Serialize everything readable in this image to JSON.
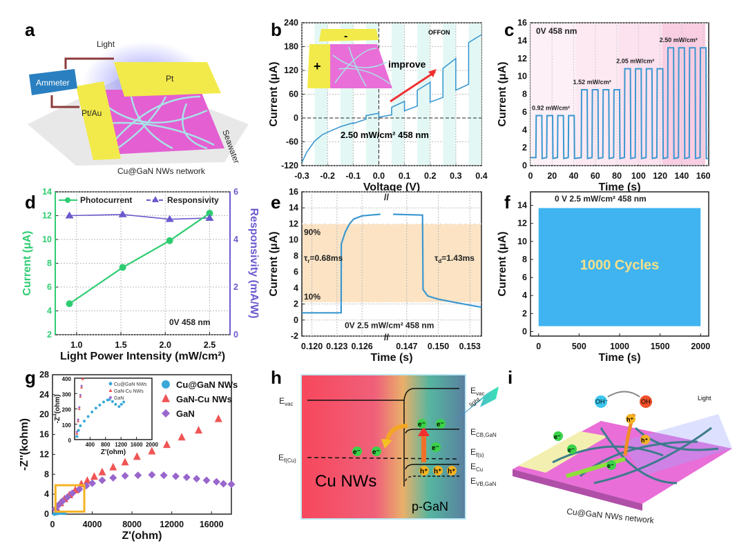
{
  "panel_letters": [
    "a",
    "b",
    "c",
    "d",
    "e",
    "f",
    "g",
    "h",
    "i"
  ],
  "panel_a": {
    "light": "Light",
    "pt": "Pt",
    "ammeter": "Ammeter",
    "ptau": "Pt/Au",
    "seawater": "Seawater",
    "network": "Cu@GaN NWs network"
  },
  "panel_b_inset": {
    "minus": "-",
    "plus": "+",
    "improve": "improve",
    "offon": "OFFON",
    "condition": "2.50 mW/cm²   458 nm"
  },
  "panel_h": {
    "evac_left": {
      "main": "E",
      "sub": "vac"
    },
    "ef_cu": {
      "main": "E",
      "sub": "f(Cu)"
    },
    "evac_right": {
      "main": "E",
      "sub": "vac"
    },
    "ecb": {
      "main": "E",
      "sub": "CB,GaN"
    },
    "efs": {
      "main": "E",
      "sub": "f(s)"
    },
    "ecu": {
      "main": "E",
      "sub": "Cu"
    },
    "evb": {
      "main": "E",
      "sub": "VB,GaN"
    },
    "cu_nws": "Cu NWs",
    "p_gan": "p-GaN",
    "light": "light",
    "electron": "e⁻",
    "hole": "h⁺"
  },
  "panel_i": {
    "oh_minus": "OH⁻",
    "oh_radical": "OH·",
    "light": "Light",
    "electron": "e⁻",
    "hole": "h⁺",
    "network": "Cu@GaN NWs network"
  },
  "colors": {
    "trace": "#3a97d0",
    "photocurrent": "#2ecc71",
    "responsivity": "#6a5acd",
    "cu_gan": "#3aa7d8",
    "gan_cu": "#f05454",
    "gan": "#9966cc",
    "zoom_box": "#f5b323",
    "on_band": "#e3f8f4",
    "fill_e": "#fbe3c4"
  },
  "chart_data": [
    {
      "id": "b",
      "type": "line",
      "xlabel": "Voltage (V)",
      "ylabel": "Current (μA)",
      "xlim": [
        -0.3,
        0.4
      ],
      "ylim": [
        -120,
        240
      ],
      "xticks": [
        "-0.3",
        "-0.2",
        "-0.1",
        "0.0",
        "0.1",
        "0.2",
        "0.3",
        "0.4"
      ],
      "yticks": [
        "-120",
        "-60",
        "0",
        "60",
        "120",
        "180",
        "240"
      ],
      "grid": true,
      "on_intervals": [
        [
          -0.25,
          -0.2
        ],
        [
          -0.15,
          -0.1
        ],
        [
          -0.05,
          0
        ],
        [
          0.05,
          0.1
        ],
        [
          0.15,
          0.2
        ],
        [
          0.25,
          0.3
        ],
        [
          0.35,
          0.4
        ]
      ],
      "points": [
        [
          -0.3,
          -112
        ],
        [
          -0.28,
          -85
        ],
        [
          -0.25,
          -58
        ],
        [
          -0.22,
          -42
        ],
        [
          -0.2,
          -36
        ],
        [
          -0.15,
          -22
        ],
        [
          -0.1,
          -12
        ],
        [
          -0.1,
          -14
        ],
        [
          -0.05,
          -3
        ],
        [
          -0.05,
          6
        ],
        [
          0,
          12
        ],
        [
          0,
          2
        ],
        [
          0.05,
          8
        ],
        [
          0.05,
          27
        ],
        [
          0.1,
          42
        ],
        [
          0.1,
          18
        ],
        [
          0.15,
          30
        ],
        [
          0.15,
          70
        ],
        [
          0.2,
          90
        ],
        [
          0.2,
          40
        ],
        [
          0.25,
          52
        ],
        [
          0.25,
          125
        ],
        [
          0.3,
          150
        ],
        [
          0.3,
          70
        ],
        [
          0.35,
          85
        ],
        [
          0.35,
          190
        ],
        [
          0.4,
          210
        ]
      ]
    },
    {
      "id": "c",
      "type": "line",
      "xlabel": "Time (s)",
      "ylabel": "Current (μA)",
      "xlim": [
        0,
        165
      ],
      "ylim": [
        0,
        16
      ],
      "xticks": [
        "0",
        "20",
        "40",
        "60",
        "80",
        "100",
        "120",
        "140",
        "160"
      ],
      "yticks": [
        "0",
        "2",
        "4",
        "6",
        "8",
        "10",
        "12",
        "14",
        "16"
      ],
      "grid": true,
      "condition": "0V   458 nm",
      "dark_current": 0.9,
      "period_s": 10,
      "on_duration_s": 5.5,
      "segments": [
        {
          "label": "0.92 mW/cm²",
          "start": 0,
          "end": 42,
          "on_current": 5.6,
          "shade": "#fdf0f6"
        },
        {
          "label": "1.52 mW/cm²",
          "start": 42,
          "end": 82,
          "on_current": 8.5,
          "shade": "#fde9f2"
        },
        {
          "label": "2.05 mW/cm²",
          "start": 82,
          "end": 122,
          "on_current": 10.85,
          "shade": "#fce1ee"
        },
        {
          "label": "2.50 mW/cm²",
          "start": 122,
          "end": 162,
          "on_current": 13.2,
          "shade": "#f9cde2"
        }
      ]
    },
    {
      "id": "d",
      "type": "line",
      "xlabel": "Light Power Intensity (mW/cm²)",
      "ylabel": "Current (μA)",
      "y2label": "Responsivity (mA/W)",
      "xlim": [
        0.76,
        2.73
      ],
      "ylim": [
        2,
        14
      ],
      "y2lim": [
        0,
        6
      ],
      "xticks": [
        "1.0",
        "1.5",
        "2.0",
        "2.5"
      ],
      "yticks": [
        "2",
        "4",
        "6",
        "8",
        "10",
        "12",
        "14"
      ],
      "y2ticks": [
        "0",
        "2",
        "4",
        "6"
      ],
      "grid": true,
      "legend": "top",
      "condition": "0V    458 nm",
      "series": [
        {
          "name": "Photocurrent",
          "axis": "left",
          "x": [
            0.92,
            1.52,
            2.05,
            2.5
          ],
          "values": [
            4.6,
            7.65,
            9.9,
            12.2
          ]
        },
        {
          "name": "Responsivity",
          "axis": "right",
          "x": [
            0.92,
            1.52,
            2.05,
            2.5
          ],
          "values": [
            5.0,
            5.05,
            4.85,
            4.9
          ]
        }
      ]
    },
    {
      "id": "e",
      "type": "line",
      "xlabel": "Time (s)",
      "ylabel": "Current (μA)",
      "ylim": [
        -2,
        16
      ],
      "broken_x": true,
      "xlim_segments": [
        [
          0.1188,
          0.1288
        ],
        [
          0.1455,
          0.1541
        ]
      ],
      "xticks": [
        [
          "0.120",
          "0.123",
          "0.126"
        ],
        [
          "0.147",
          "0.150",
          "0.153"
        ]
      ],
      "yticks": [
        "-2",
        "0",
        "2",
        "4",
        "6",
        "8",
        "10",
        "12",
        "14",
        "16"
      ],
      "grid": true,
      "band": [
        2.2,
        12
      ],
      "label_90": "90%",
      "label_10": "10%",
      "tau_r": {
        "sym": "τ",
        "sub": "r",
        "rest": "=0.68ms"
      },
      "tau_d": {
        "sym": "τ",
        "sub": "d",
        "rest": "=1.43ms"
      },
      "condition": "0V   2.5 mW/cm²   458 nm",
      "points": [
        [
          [
            0.1188,
            0.9
          ],
          [
            0.1235,
            0.9
          ],
          [
            0.12352,
            9.5
          ],
          [
            0.124,
            11
          ],
          [
            0.1245,
            12
          ],
          [
            0.125,
            12.6
          ],
          [
            0.126,
            13
          ],
          [
            0.127,
            13.1
          ],
          [
            0.1282,
            13.2
          ]
        ],
        [
          [
            0.1457,
            13.2
          ],
          [
            0.1485,
            13.1
          ],
          [
            0.14855,
            3.8
          ],
          [
            0.149,
            3.0
          ],
          [
            0.15,
            2.6
          ],
          [
            0.152,
            2.1
          ],
          [
            0.1541,
            1.6
          ]
        ]
      ]
    },
    {
      "id": "f",
      "type": "area",
      "xlabel": "Time (s)",
      "ylabel": "Current (μA)",
      "xlim": [
        -100,
        2100
      ],
      "ylim": [
        -0.5,
        15.5
      ],
      "xticks": [
        "0",
        "500",
        "1000",
        "1500",
        "2000"
      ],
      "yticks": [
        "0",
        "2",
        "4",
        "6",
        "8",
        "10",
        "12",
        "14"
      ],
      "grid": false,
      "condition": "0 V    2.5 mW/cm²    458 nm",
      "cycles_label": "1000 Cycles",
      "range": [
        0,
        2000
      ],
      "min_current": 0.6,
      "max_current": 13.7
    },
    {
      "id": "g",
      "type": "scatter",
      "xlabel": "Z'(ohm)",
      "ylabel": "-Z''(kohm)",
      "xlim": [
        0,
        18000
      ],
      "ylim": [
        0,
        28
      ],
      "xticks": [
        "0",
        "4000",
        "8000",
        "12000",
        "16000"
      ],
      "yticks": [
        "0",
        "4",
        "8",
        "12",
        "16",
        "20",
        "24",
        "28"
      ],
      "grid": false,
      "legend": "top-right",
      "series": [
        {
          "name": "Cu@GaN NWs",
          "marker": "circle",
          "points": [
            [
              200,
              0.05
            ],
            [
              400,
              0.15
            ],
            [
              600,
              0.22
            ],
            [
              800,
              0.26
            ],
            [
              1000,
              0.24
            ],
            [
              1200,
              0.23
            ]
          ]
        },
        {
          "name": "GaN-Cu NWs",
          "marker": "triangle",
          "points": [
            [
              400,
              1.2
            ],
            [
              800,
              2.2
            ],
            [
              1200,
              3.0
            ],
            [
              1700,
              3.8
            ],
            [
              2300,
              4.8
            ],
            [
              2900,
              6
            ],
            [
              3500,
              6.7
            ],
            [
              4200,
              7.5
            ],
            [
              5000,
              8.4
            ],
            [
              6100,
              9.4
            ],
            [
              7300,
              10.4
            ],
            [
              8500,
              11.5
            ],
            [
              10000,
              12.6
            ],
            [
              11500,
              13.9
            ],
            [
              13000,
              15.4
            ],
            [
              14700,
              16.8
            ],
            [
              16700,
              19.1
            ]
          ]
        },
        {
          "name": "GaN",
          "marker": "diamond",
          "points": [
            [
              300,
              1.0
            ],
            [
              600,
              1.8
            ],
            [
              1000,
              2.6
            ],
            [
              1500,
              3.4
            ],
            [
              2000,
              4.2
            ],
            [
              2700,
              5
            ],
            [
              3400,
              5.7
            ],
            [
              4000,
              6.2
            ],
            [
              5000,
              6.8
            ],
            [
              6100,
              7.3
            ],
            [
              7300,
              7.7
            ],
            [
              8600,
              7.8
            ],
            [
              10000,
              7.9
            ],
            [
              11200,
              7.8
            ],
            [
              12400,
              7.6
            ],
            [
              13500,
              7.4
            ],
            [
              14500,
              7.1
            ],
            [
              15500,
              6.8
            ],
            [
              16500,
              6.5
            ],
            [
              17200,
              6.1
            ],
            [
              18000,
              6.0
            ]
          ]
        }
      ],
      "zoom_box": [
        [
          300,
          3200
        ],
        [
          0.5,
          5.8
        ]
      ]
    },
    {
      "id": "g_inset",
      "type": "scatter",
      "xlabel": "Z'(ohm)",
      "ylabel": "-Z''(ohm)",
      "xlim": [
        0,
        2000
      ],
      "ylim": [
        0,
        400
      ],
      "xticks": [
        "400",
        "800",
        "1200",
        "1600",
        "2000"
      ],
      "yticks": [
        "0",
        "100",
        "200",
        "300",
        "400"
      ],
      "grid": false,
      "legend": "top-right",
      "series": [
        {
          "name": "Cu@GaN NWs",
          "marker": "circle",
          "points": [
            [
              60,
              20
            ],
            [
              100,
              60
            ],
            [
              150,
              90
            ],
            [
              250,
              120
            ],
            [
              350,
              150
            ],
            [
              450,
              180
            ],
            [
              550,
              205
            ],
            [
              650,
              225
            ],
            [
              750,
              245
            ],
            [
              850,
              258
            ],
            [
              900,
              260
            ],
            [
              980,
              248
            ],
            [
              1060,
              230
            ],
            [
              1150,
              215
            ],
            [
              1210,
              230
            ],
            [
              1270,
              245
            ]
          ]
        },
        {
          "name": "GaN-Cu NWs",
          "marker": "triangle",
          "points": [
            [
              60,
              40
            ],
            [
              90,
              120
            ],
            [
              120,
              200
            ],
            [
              150,
              280
            ],
            [
              180,
              340
            ],
            [
              210,
              395
            ]
          ]
        },
        {
          "name": "GaN",
          "marker": "diamond",
          "points": [
            [
              60,
              50
            ],
            [
              90,
              130
            ],
            [
              120,
              210
            ],
            [
              150,
              290
            ],
            [
              180,
              350
            ]
          ]
        }
      ]
    }
  ]
}
